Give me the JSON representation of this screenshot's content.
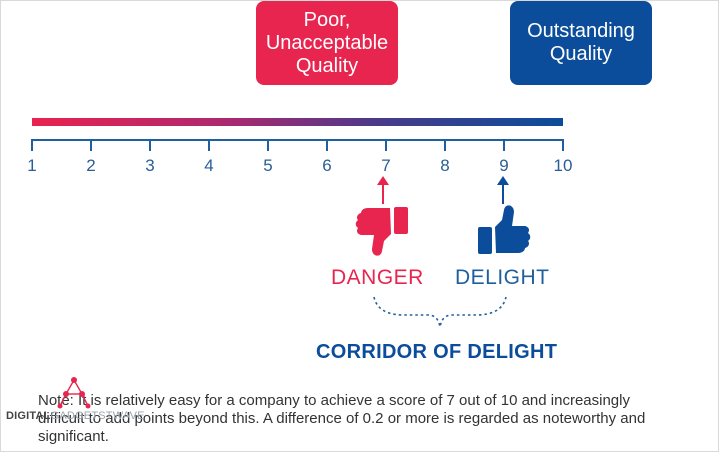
{
  "boxes": {
    "poor": "Poor,\nUnacceptable\nQuality",
    "outstanding": "Outstanding\nQuality"
  },
  "scale": {
    "ticks": [
      "1",
      "2",
      "3",
      "4",
      "5",
      "6",
      "7",
      "8",
      "9",
      "10"
    ]
  },
  "markers": {
    "danger_label": "DANGER",
    "delight_label": "DELIGHT",
    "danger_icon": "thumbs-down-icon",
    "delight_icon": "thumbs-up-icon"
  },
  "corridor": "CORRIDOR OF DELIGHT",
  "note": "Note: It is relatively easy for a company to achieve a score of 7 out of 10 and increasingly difficult to add points beyond this.  A difference of 0.2 or more is regarded as noteworthy and significant.",
  "watermark": {
    "brand_bold": "DIGITAL",
    "brand_light": "GADGETSTWAVE"
  },
  "colors": {
    "red": "#e8254f",
    "blue": "#0b4d9a"
  }
}
